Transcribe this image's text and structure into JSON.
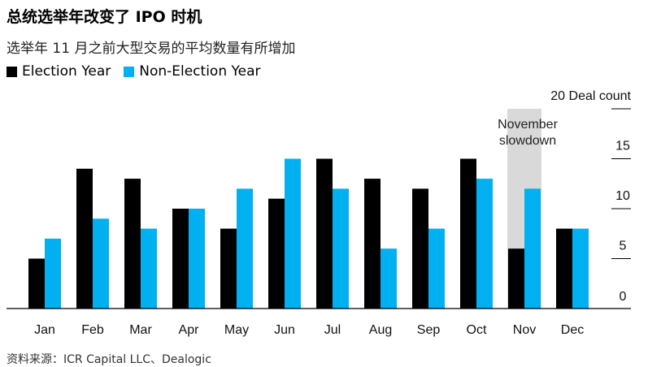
{
  "title": "总统选举年改变了 IPO 时机",
  "subtitle": "选举年 11 月之前大型交易的平均数量有所增加",
  "source": "资料来源：ICR Capital LLC、Dealogic",
  "colors": {
    "election": "#000000",
    "non_election": "#00b0f0",
    "highlight": "#d9d9d9"
  },
  "chart_data": {
    "type": "bar",
    "categories": [
      "Jan",
      "Feb",
      "Mar",
      "Apr",
      "May",
      "Jun",
      "Jul",
      "Aug",
      "Sep",
      "Oct",
      "Nov",
      "Dec"
    ],
    "series": [
      {
        "name": "Election Year",
        "values": [
          5,
          14,
          13,
          10,
          8,
          11,
          15,
          13,
          12,
          15,
          6,
          8
        ]
      },
      {
        "name": "Non-Election Year",
        "values": [
          7,
          9,
          8,
          10,
          12,
          15,
          12,
          6,
          8,
          13,
          12,
          8
        ]
      }
    ],
    "ylim": [
      0,
      20
    ],
    "yticks": [
      "0",
      "5",
      "10",
      "15",
      "20 Deal count"
    ],
    "ytick_values": [
      0,
      5,
      10,
      15,
      20
    ],
    "annotation": {
      "category": "Nov",
      "line1": "November",
      "line2": "slowdown"
    },
    "legend_position": "top-left",
    "grid": false
  }
}
